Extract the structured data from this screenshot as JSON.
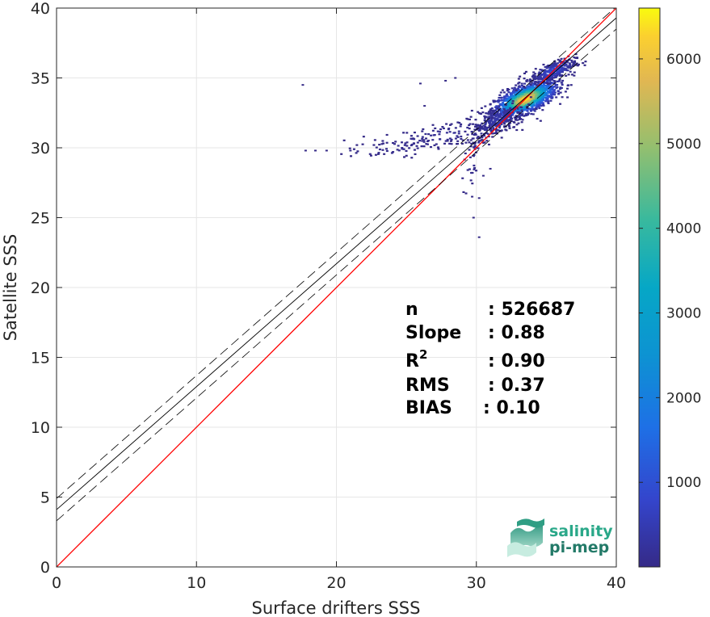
{
  "chart_data": {
    "type": "heatmap",
    "title": "",
    "xlabel": "Surface drifters SSS",
    "ylabel": "Satellite SSS",
    "xlim": [
      0,
      40
    ],
    "ylim": [
      0,
      40
    ],
    "xticks": [
      0,
      10,
      20,
      30,
      40
    ],
    "yticks": [
      0,
      5,
      10,
      15,
      20,
      25,
      30,
      35,
      40
    ],
    "grid": true,
    "colorbar": {
      "colormap": "parula",
      "range": [
        1,
        6600
      ],
      "ticks": [
        1000,
        2000,
        3000,
        4000,
        5000,
        6000
      ]
    },
    "identity_line": {
      "color": "#ff0000",
      "from": [
        0,
        0
      ],
      "to": [
        40,
        40
      ]
    },
    "regression_line": {
      "slope": 0.88,
      "intercept": 4.1,
      "color": "#000000"
    },
    "confidence_offset": 0.8,
    "density_clusters": [
      {
        "x": 33.5,
        "y": 33.5,
        "sx": 1.1,
        "sy": 0.9,
        "peak": 6500,
        "n": 1400
      },
      {
        "x": 35.5,
        "y": 35.5,
        "sx": 0.8,
        "sy": 0.6,
        "peak": 900,
        "n": 300
      },
      {
        "x": 31.5,
        "y": 32.0,
        "sx": 1.0,
        "sy": 1.0,
        "peak": 400,
        "n": 250
      },
      {
        "x": 28.0,
        "y": 31.0,
        "sx": 2.5,
        "sy": 0.8,
        "peak": 150,
        "n": 120
      },
      {
        "x": 24.5,
        "y": 30.0,
        "sx": 2.0,
        "sy": 0.5,
        "peak": 100,
        "n": 60
      },
      {
        "x": 29.8,
        "y": 29.5,
        "sx": 0.4,
        "sy": 2.0,
        "peak": 120,
        "n": 40
      }
    ],
    "outliers": [
      [
        17.6,
        34.5
      ],
      [
        17.8,
        29.8
      ],
      [
        18.5,
        29.8
      ],
      [
        19.3,
        29.8
      ],
      [
        21.0,
        29.8
      ],
      [
        26.0,
        34.6
      ],
      [
        27.8,
        34.8
      ],
      [
        29.7,
        26.5
      ],
      [
        30.2,
        26.4
      ],
      [
        29.8,
        25.0
      ],
      [
        30.2,
        23.6
      ],
      [
        28.5,
        35.0
      ],
      [
        30.5,
        28.0
      ],
      [
        31.0,
        28.5
      ],
      [
        26.3,
        33.0
      ]
    ]
  },
  "stats": {
    "rows": [
      {
        "label": "n",
        "value": ": 526687"
      },
      {
        "label": "Slope",
        "value": ": 0.88"
      },
      {
        "label": "R",
        "sup": "2",
        "value": ": 0.90"
      },
      {
        "label": "RMS",
        "value": ": 0.37"
      },
      {
        "label": "BIAS",
        "value": ": 0.10"
      }
    ]
  },
  "logo": {
    "line1": "salinity",
    "line2": "pi-mep"
  }
}
